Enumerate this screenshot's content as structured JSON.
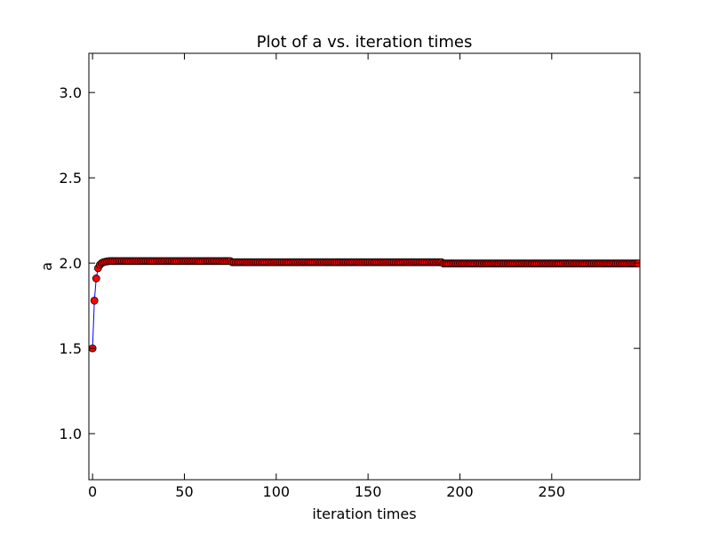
{
  "chart_data": {
    "type": "scatter",
    "title": "Plot of a vs. iteration times",
    "xlabel": "iteration times",
    "ylabel": "a",
    "xlim": [
      -2,
      298
    ],
    "ylim": [
      0.73,
      3.23
    ],
    "xticks": [
      0,
      50,
      100,
      150,
      200,
      250
    ],
    "xtick_labels": [
      "0",
      "50",
      "100",
      "150",
      "200",
      "250"
    ],
    "yticks": [
      1.0,
      1.5,
      2.0,
      2.5,
      3.0
    ],
    "ytick_labels": [
      "1.0",
      "1.5",
      "2.0",
      "2.5",
      "3.0"
    ],
    "grid": false,
    "marker": {
      "shape": "circle",
      "fill": "#ff0000",
      "edge": "#000000",
      "line_color": "#0000ff"
    },
    "series": [
      {
        "points": {
          "start_values": [
            1.5,
            1.78,
            1.91,
            1.97,
            1.99,
            2.0,
            2.005,
            2.008,
            2.01
          ],
          "segments": [
            {
              "x_from": 9,
              "x_to": 75,
              "y": 2.012
            },
            {
              "x_from": 76,
              "x_to": 190,
              "y": 2.005
            },
            {
              "x_from": 191,
              "x_to": 297,
              "y": 1.998
            }
          ]
        }
      }
    ]
  }
}
